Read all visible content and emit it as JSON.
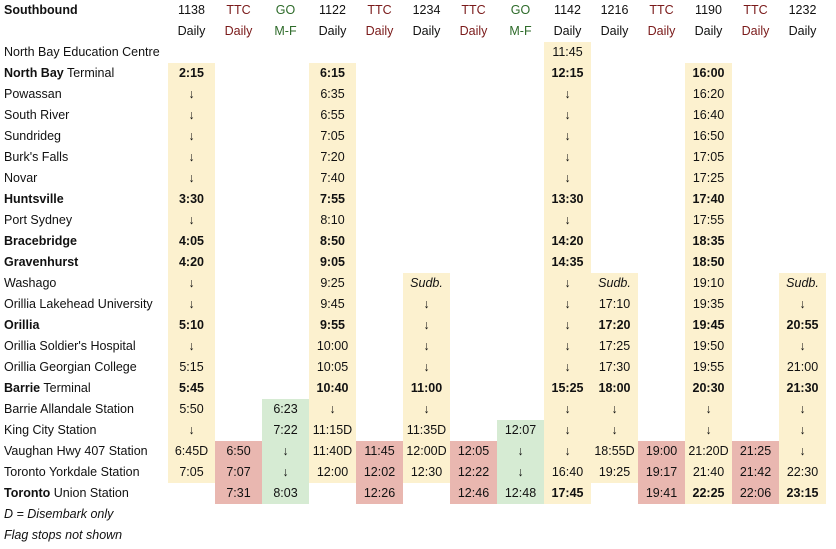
{
  "title": "Southbound",
  "colors": {
    "onr": "#fcf1cf",
    "ttc": "#e9b7b0",
    "go": "#d6ebd3",
    "ttc_text": "#7a1a1a",
    "go_text": "#2e6b2a"
  },
  "columns": [
    {
      "head1": "1138",
      "head2": "Daily",
      "kind": "onr"
    },
    {
      "head1": "TTC",
      "head2": "Daily",
      "kind": "ttc"
    },
    {
      "head1": "GO",
      "head2": "M-F",
      "kind": "go"
    },
    {
      "head1": "1122",
      "head2": "Daily",
      "kind": "onr"
    },
    {
      "head1": "TTC",
      "head2": "Daily",
      "kind": "ttc"
    },
    {
      "head1": "1234",
      "head2": "Daily",
      "kind": "onr"
    },
    {
      "head1": "TTC",
      "head2": "Daily",
      "kind": "ttc"
    },
    {
      "head1": "GO",
      "head2": "M-F",
      "kind": "go"
    },
    {
      "head1": "1142",
      "head2": "Daily",
      "kind": "onr"
    },
    {
      "head1": "1216",
      "head2": "Daily",
      "kind": "onr"
    },
    {
      "head1": "TTC",
      "head2": "Daily",
      "kind": "ttc"
    },
    {
      "head1": "1190",
      "head2": "Daily",
      "kind": "onr"
    },
    {
      "head1": "TTC",
      "head2": "Daily",
      "kind": "ttc"
    },
    {
      "head1": "1232",
      "head2": "Daily",
      "kind": "onr"
    }
  ],
  "rows": [
    {
      "name": "North Bay Education Centre",
      "bold": false,
      "cells": [
        "",
        "",
        "",
        "",
        "",
        "",
        "",
        "",
        "11:45",
        "",
        "",
        "",
        "",
        ""
      ]
    },
    {
      "name": "North Bay",
      "suffix": " Terminal",
      "bold": true,
      "cells": [
        "2:15",
        "",
        "",
        "6:15",
        "",
        "",
        "",
        "",
        "12:15",
        "",
        "",
        "16:00",
        "",
        ""
      ]
    },
    {
      "name": "Powassan",
      "bold": false,
      "cells": [
        "↓",
        "",
        "",
        "6:35",
        "",
        "",
        "",
        "",
        "↓",
        "",
        "",
        "16:20",
        "",
        ""
      ]
    },
    {
      "name": "South River",
      "bold": false,
      "cells": [
        "↓",
        "",
        "",
        "6:55",
        "",
        "",
        "",
        "",
        "↓",
        "",
        "",
        "16:40",
        "",
        ""
      ]
    },
    {
      "name": "Sundrideg",
      "bold": false,
      "cells": [
        "↓",
        "",
        "",
        "7:05",
        "",
        "",
        "",
        "",
        "↓",
        "",
        "",
        "16:50",
        "",
        ""
      ]
    },
    {
      "name": "Burk's Falls",
      "bold": false,
      "cells": [
        "↓",
        "",
        "",
        "7:20",
        "",
        "",
        "",
        "",
        "↓",
        "",
        "",
        "17:05",
        "",
        ""
      ]
    },
    {
      "name": "Novar",
      "bold": false,
      "cells": [
        "↓",
        "",
        "",
        "7:40",
        "",
        "",
        "",
        "",
        "↓",
        "",
        "",
        "17:25",
        "",
        ""
      ]
    },
    {
      "name": "Huntsville",
      "bold": true,
      "cells": [
        "3:30",
        "",
        "",
        "7:55",
        "",
        "",
        "",
        "",
        "13:30",
        "",
        "",
        "17:40",
        "",
        ""
      ]
    },
    {
      "name": "Port Sydney",
      "bold": false,
      "cells": [
        "↓",
        "",
        "",
        "8:10",
        "",
        "",
        "",
        "",
        "↓",
        "",
        "",
        "17:55",
        "",
        ""
      ]
    },
    {
      "name": "Bracebridge",
      "bold": true,
      "cells": [
        "4:05",
        "",
        "",
        "8:50",
        "",
        "",
        "",
        "",
        "14:20",
        "",
        "",
        "18:35",
        "",
        ""
      ]
    },
    {
      "name": "Gravenhurst",
      "bold": true,
      "cells": [
        "4:20",
        "",
        "",
        "9:05",
        "",
        "",
        "",
        "",
        "14:35",
        "",
        "",
        "18:50",
        "",
        ""
      ]
    },
    {
      "name": "Washago",
      "bold": false,
      "cells": [
        "↓",
        "",
        "",
        "9:25",
        "",
        "Sudb.",
        "",
        "",
        "↓",
        "Sudb.",
        "",
        "19:10",
        "",
        "Sudb."
      ]
    },
    {
      "name": "Orillia Lakehead University",
      "bold": false,
      "cells": [
        "↓",
        "",
        "",
        "9:45",
        "",
        "↓",
        "",
        "",
        "↓",
        "17:10",
        "",
        "19:35",
        "",
        "↓"
      ]
    },
    {
      "name": "Orillia",
      "bold": true,
      "cells": [
        "5:10",
        "",
        "",
        "9:55",
        "",
        "↓",
        "",
        "",
        "↓",
        "17:20",
        "",
        "19:45",
        "",
        "20:55"
      ]
    },
    {
      "name": "Orillia Soldier's Hospital",
      "bold": false,
      "cells": [
        "↓",
        "",
        "",
        "10:00",
        "",
        "↓",
        "",
        "",
        "↓",
        "17:25",
        "",
        "19:50",
        "",
        "↓"
      ]
    },
    {
      "name": "Orillia Georgian College",
      "bold": false,
      "cells": [
        "5:15",
        "",
        "",
        "10:05",
        "",
        "↓",
        "",
        "",
        "↓",
        "17:30",
        "",
        "19:55",
        "",
        "21:00"
      ]
    },
    {
      "name": "Barrie",
      "suffix": " Terminal",
      "bold": true,
      "cells": [
        "5:45",
        "",
        "",
        "10:40",
        "",
        "11:00",
        "",
        "",
        "15:25",
        "18:00",
        "",
        "20:30",
        "",
        "21:30"
      ]
    },
    {
      "name": "Barrie Allandale Station",
      "bold": false,
      "cells": [
        "5:50",
        "",
        "6:23",
        "↓",
        "",
        "↓",
        "",
        "",
        "↓",
        "↓",
        "",
        "↓",
        "",
        "↓"
      ]
    },
    {
      "name": "King City Station",
      "bold": false,
      "cells": [
        "↓",
        "",
        "7:22",
        "11:15D",
        "",
        "11:35D",
        "",
        "12:07",
        "↓",
        "↓",
        "",
        "↓",
        "",
        "↓"
      ]
    },
    {
      "name": "Vaughan Hwy 407 Station",
      "bold": false,
      "cells": [
        "6:45D",
        "6:50",
        "↓",
        "11:40D",
        "11:45",
        "12:00D",
        "12:05",
        "↓",
        "↓",
        "18:55D",
        "19:00",
        "21:20D",
        "21:25",
        "↓"
      ]
    },
    {
      "name": "Toronto Yorkdale Station",
      "bold": false,
      "cells": [
        "7:05",
        "7:07",
        "↓",
        "12:00",
        "12:02",
        "12:30",
        "12:22",
        "↓",
        "16:40",
        "19:25",
        "19:17",
        "21:40",
        "21:42",
        "22:30"
      ]
    },
    {
      "name": "Toronto",
      "suffix": " Union Station",
      "bold": true,
      "cells": [
        "",
        "7:31",
        "8:03",
        "",
        "12:26",
        "",
        "12:46",
        "12:48",
        "17:45",
        "",
        "19:41",
        "22:25",
        "22:06",
        "23:15"
      ]
    }
  ],
  "notes": [
    "D = Disembark only",
    "Flag stops not shown"
  ]
}
